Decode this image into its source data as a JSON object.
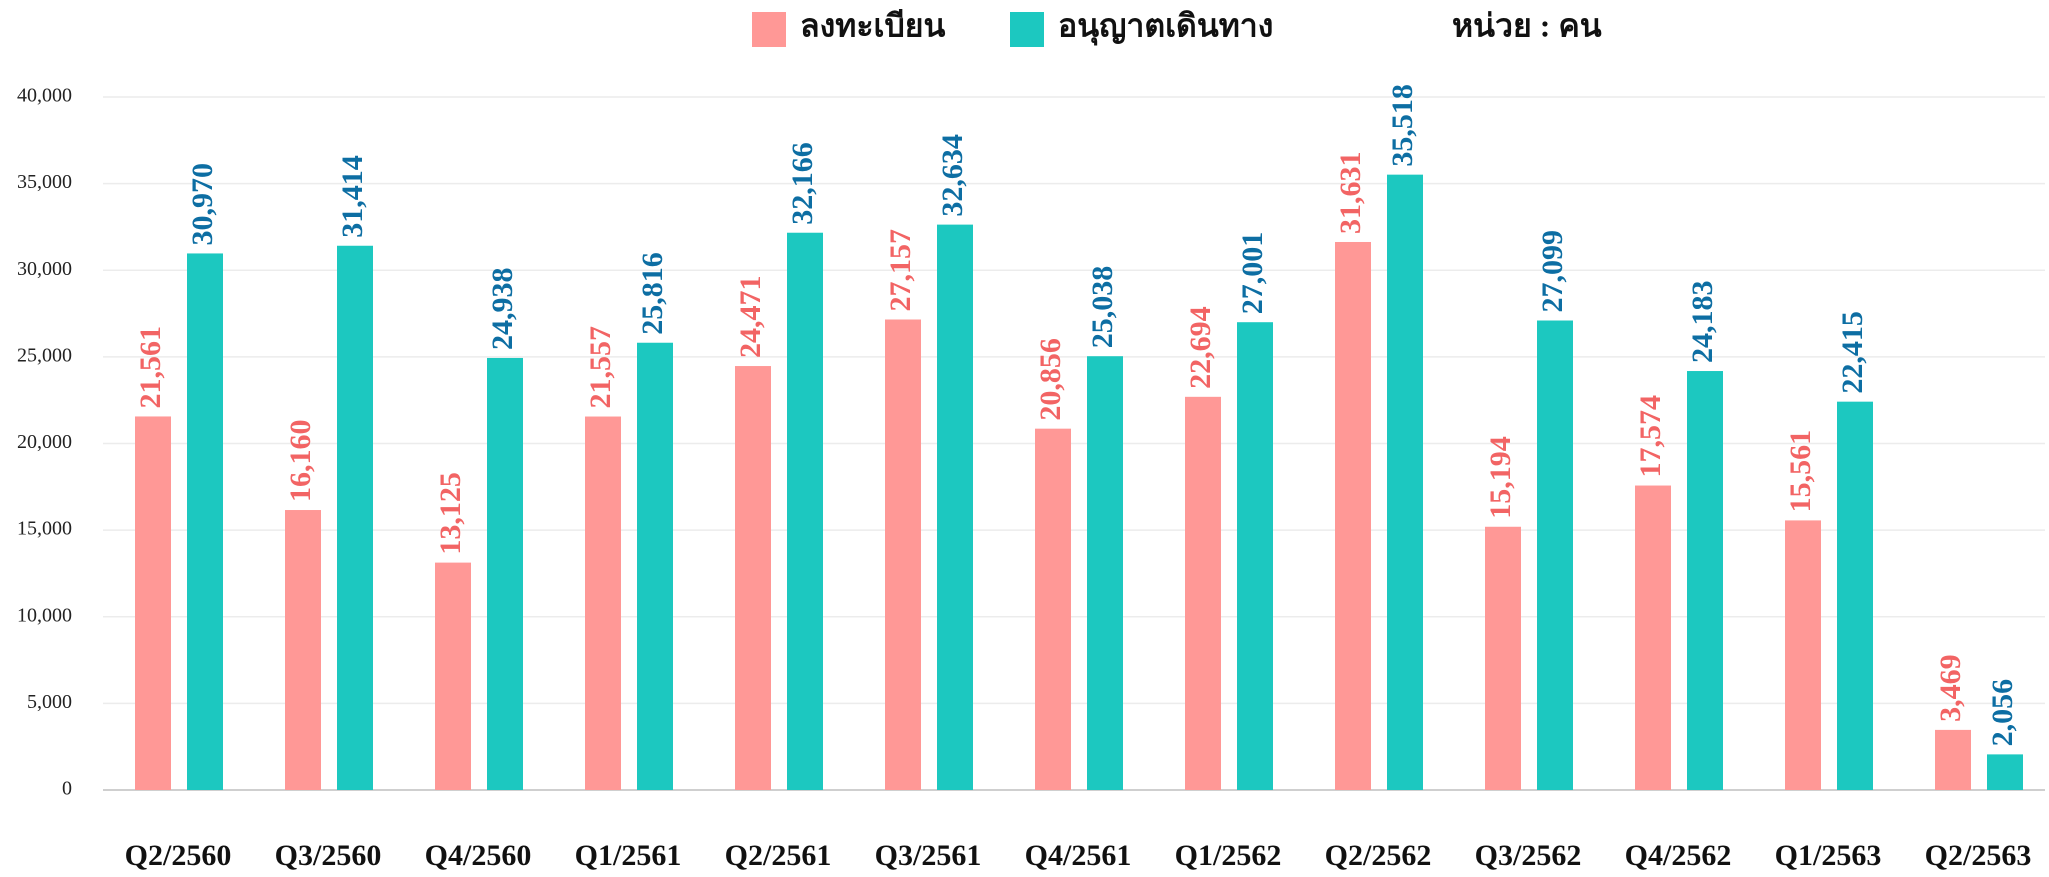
{
  "chart_data": {
    "type": "bar",
    "annotation": "หน่วย : คน",
    "categories": [
      "Q2/2560",
      "Q3/2560",
      "Q4/2560",
      "Q1/2561",
      "Q2/2561",
      "Q3/2561",
      "Q4/2561",
      "Q1/2562",
      "Q2/2562",
      "Q3/2562",
      "Q4/2562",
      "Q1/2563",
      "Q2/2563"
    ],
    "series": [
      {
        "name": "ลงทะเบียน",
        "color": "#ff9896",
        "label_color": "#f26464",
        "values": [
          21561,
          16160,
          13125,
          21557,
          24471,
          27157,
          20856,
          22694,
          31631,
          15194,
          17574,
          15561,
          3469
        ],
        "value_labels": [
          "21,561",
          "16,160",
          "13,125",
          "21,557",
          "24,471",
          "27,157",
          "20,856",
          "22,694",
          "31,631",
          "15,194",
          "17,574",
          "15,561",
          "3,469"
        ]
      },
      {
        "name": "อนุญาตเดินทาง",
        "color": "#1cc8c0",
        "label_color": "#0d6ea3",
        "values": [
          30970,
          31414,
          24938,
          25816,
          32166,
          32634,
          25038,
          27001,
          35518,
          27099,
          24183,
          22415,
          2056
        ],
        "value_labels": [
          "30,970",
          "31,414",
          "24,938",
          "25,816",
          "32,166",
          "32,634",
          "25,038",
          "27,001",
          "35,518",
          "27,099",
          "24,183",
          "22,415",
          "2,056"
        ]
      }
    ],
    "ylim": [
      0,
      40000
    ],
    "yticks": [
      0,
      {
        "value": 5000,
        "label": "5,000"
      },
      {
        "value": 10000,
        "label": "10,000"
      },
      {
        "value": 15000,
        "label": "15,000"
      },
      {
        "value": 20000,
        "label": "20,000"
      },
      {
        "value": 25000,
        "label": "25,000"
      },
      {
        "value": 30000,
        "label": "30,000"
      },
      {
        "value": 35000,
        "label": "35,000"
      },
      {
        "value": 40000,
        "label": "40,000"
      }
    ],
    "grid": true
  }
}
